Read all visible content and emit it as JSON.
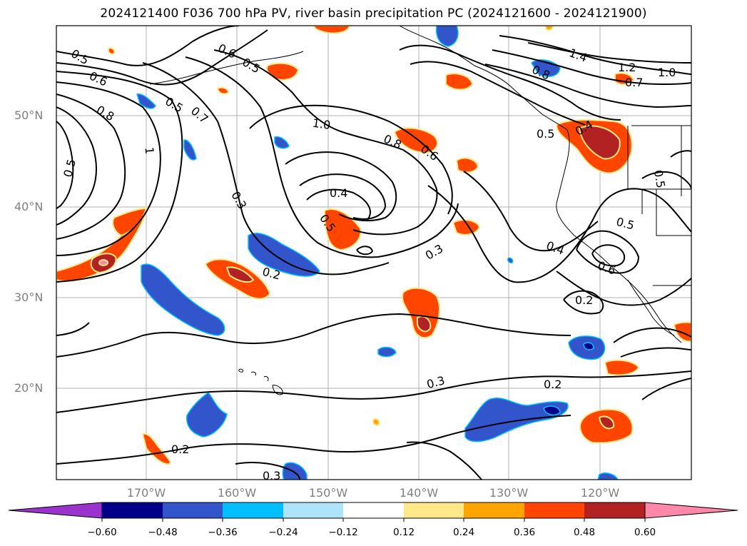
{
  "title": "2024121400 F036 700 hPa PV, river basin precipitation PC (2024121600 - 2024121900)",
  "map": {
    "lat_labels": [
      "50°N",
      "40°N",
      "30°N",
      "20°N"
    ],
    "lon_labels": [
      "170°W",
      "160°W",
      "150°W",
      "140°W",
      "130°W",
      "120°W"
    ],
    "contour_labels": [
      "0.5",
      "0.6",
      "0.8",
      "0.5",
      "0.6",
      "0.5",
      "0.5",
      "0.7",
      "1.0",
      "0.8",
      "0.6",
      "0.4",
      "0.5",
      "0.3",
      "0.2",
      "0.3",
      "1.4",
      "1.2",
      "1.0",
      "0.7",
      "0.8",
      "0.5",
      "0.4",
      "0.5",
      "0.5",
      "0.4",
      "0.6",
      "0.2",
      "0.3",
      "0.2",
      "0.2",
      "0.3",
      "1"
    ],
    "colors": {
      "coast": "#000000",
      "grid": "#b0b0b0",
      "contour": "#000000"
    }
  },
  "colorbar": {
    "colors": [
      "#9933cc",
      "#00008b",
      "#3355cc",
      "#00bfff",
      "#aee4fa",
      "#ffffff",
      "#ffe88a",
      "#ffa500",
      "#ff4500",
      "#b22222",
      "#ff88aa"
    ],
    "tick_labels": [
      "−0.60",
      "−0.48",
      "−0.36",
      "−0.24",
      "−0.12",
      "0.12",
      "0.24",
      "0.36",
      "0.48",
      "0.60"
    ]
  }
}
